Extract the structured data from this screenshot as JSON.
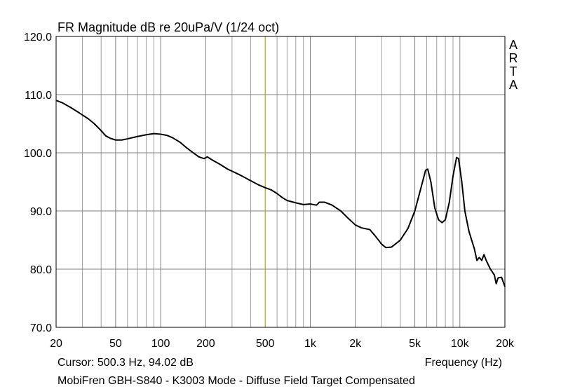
{
  "chart_data": {
    "type": "line",
    "title": "FR Magnitude dB re 20uPa/V (1/24 oct)",
    "watermark": "ARTA",
    "xlabel": "Frequency (Hz)",
    "ylabel": "",
    "x_scale": "log",
    "xlim": [
      20,
      20000
    ],
    "ylim": [
      70,
      120
    ],
    "grid": true,
    "x_ticks": [
      {
        "value": 20,
        "label": "20"
      },
      {
        "value": 50,
        "label": "50"
      },
      {
        "value": 100,
        "label": "100"
      },
      {
        "value": 200,
        "label": "200"
      },
      {
        "value": 500,
        "label": "500"
      },
      {
        "value": 1000,
        "label": "1k"
      },
      {
        "value": 2000,
        "label": "2k"
      },
      {
        "value": 5000,
        "label": "5k"
      },
      {
        "value": 10000,
        "label": "10k"
      },
      {
        "value": 20000,
        "label": "20k"
      }
    ],
    "y_ticks": [
      {
        "value": 70,
        "label": "70.0"
      },
      {
        "value": 80,
        "label": "80.0"
      },
      {
        "value": 90,
        "label": "90.0"
      },
      {
        "value": 100,
        "label": "100.0"
      },
      {
        "value": 110,
        "label": "110.0"
      },
      {
        "value": 120,
        "label": "120.0"
      }
    ],
    "cursor": {
      "x": 500.3,
      "y": 94.02
    },
    "cursor_color": "#c8b400",
    "line_color": "#000000",
    "grid_color": "#a0a0a0",
    "series": [
      {
        "name": "",
        "points": [
          [
            20,
            109.0
          ],
          [
            22,
            108.6
          ],
          [
            25,
            107.8
          ],
          [
            28,
            107.0
          ],
          [
            30,
            106.5
          ],
          [
            33,
            105.8
          ],
          [
            36,
            105.0
          ],
          [
            40,
            103.8
          ],
          [
            43,
            102.9
          ],
          [
            46,
            102.5
          ],
          [
            50,
            102.2
          ],
          [
            55,
            102.2
          ],
          [
            60,
            102.4
          ],
          [
            70,
            102.8
          ],
          [
            80,
            103.1
          ],
          [
            90,
            103.3
          ],
          [
            100,
            103.2
          ],
          [
            110,
            103.0
          ],
          [
            120,
            102.6
          ],
          [
            135,
            101.8
          ],
          [
            150,
            100.8
          ],
          [
            165,
            100.0
          ],
          [
            180,
            99.3
          ],
          [
            195,
            99.0
          ],
          [
            205,
            99.3
          ],
          [
            220,
            98.8
          ],
          [
            250,
            98.0
          ],
          [
            280,
            97.2
          ],
          [
            320,
            96.5
          ],
          [
            350,
            96.0
          ],
          [
            400,
            95.2
          ],
          [
            450,
            94.5
          ],
          [
            500,
            94.0
          ],
          [
            550,
            93.6
          ],
          [
            600,
            93.0
          ],
          [
            650,
            92.3
          ],
          [
            700,
            91.8
          ],
          [
            750,
            91.6
          ],
          [
            800,
            91.4
          ],
          [
            900,
            91.1
          ],
          [
            1000,
            91.2
          ],
          [
            1100,
            91.0
          ],
          [
            1150,
            91.5
          ],
          [
            1250,
            91.5
          ],
          [
            1400,
            91.0
          ],
          [
            1600,
            90.0
          ],
          [
            1800,
            88.7
          ],
          [
            2000,
            87.6
          ],
          [
            2200,
            87.1
          ],
          [
            2500,
            86.8
          ],
          [
            2700,
            85.8
          ],
          [
            3000,
            84.3
          ],
          [
            3200,
            83.7
          ],
          [
            3500,
            83.8
          ],
          [
            4000,
            85.0
          ],
          [
            4500,
            87.0
          ],
          [
            5000,
            90.0
          ],
          [
            5500,
            94.0
          ],
          [
            5900,
            97.0
          ],
          [
            6100,
            97.2
          ],
          [
            6400,
            95.0
          ],
          [
            6800,
            90.5
          ],
          [
            7200,
            88.5
          ],
          [
            7600,
            88.0
          ],
          [
            8000,
            88.5
          ],
          [
            8500,
            91.5
          ],
          [
            9000,
            96.0
          ],
          [
            9500,
            99.2
          ],
          [
            9800,
            99.0
          ],
          [
            10300,
            95.0
          ],
          [
            10800,
            90.0
          ],
          [
            11500,
            86.5
          ],
          [
            12500,
            83.5
          ],
          [
            13000,
            81.5
          ],
          [
            13500,
            82.0
          ],
          [
            14000,
            81.5
          ],
          [
            14500,
            82.5
          ],
          [
            15000,
            81.5
          ],
          [
            16000,
            80.0
          ],
          [
            17000,
            79.0
          ],
          [
            17500,
            77.5
          ],
          [
            18000,
            78.5
          ],
          [
            19000,
            78.6
          ],
          [
            20000,
            77.0
          ]
        ]
      }
    ]
  },
  "footer": {
    "cursor_readout": "Cursor: 500.3 Hz, 94.02 dB",
    "caption": "MobiFren GBH-S840 - K3003 Mode - Diffuse Field Target Compensated"
  }
}
